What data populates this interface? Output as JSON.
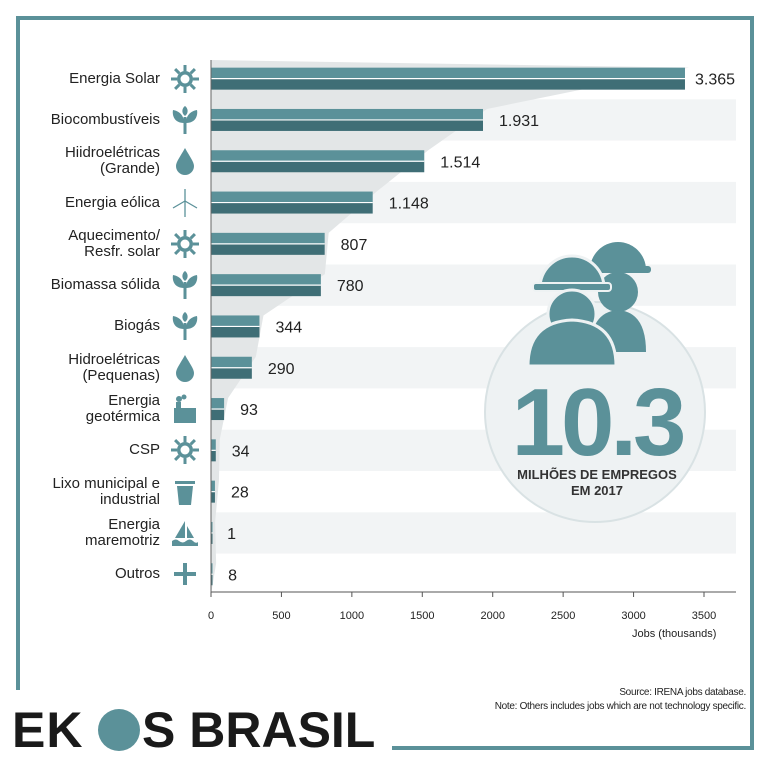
{
  "chart_data": {
    "type": "bar",
    "orientation": "horizontal",
    "categories": [
      "Energia Solar",
      "Biocombustíveis",
      "Hiidroelétricas\n(Grande)",
      "Energia eólica",
      "Aquecimento/\nResfr. solar",
      "Biomassa sólida",
      "Biogás",
      "Hidroelétricas\n(Pequenas)",
      "Energia\ngeotérmica",
      "CSP",
      "Lixo municipal e\nindustrial",
      "Energia\nmaremotriz",
      "Outros"
    ],
    "values": [
      3365,
      1931,
      1514,
      1148,
      807,
      780,
      344,
      290,
      93,
      34,
      28,
      1,
      8
    ],
    "value_labels": [
      "3.365",
      "1.931",
      "1.514",
      "1.148",
      "807",
      "780",
      "344",
      "290",
      "93",
      "34",
      "28",
      "1",
      "8"
    ],
    "icons": [
      "sun-icon",
      "plant-icon",
      "water-drop-icon",
      "wind-turbine-icon",
      "sun-icon",
      "plant-icon",
      "plant-icon",
      "water-drop-icon",
      "geothermal-icon",
      "sun-icon",
      "trash-bin-icon",
      "wave-boat-icon",
      "plus-icon"
    ],
    "xticks": [
      0,
      500,
      1000,
      1500,
      2000,
      2500,
      3000,
      3500
    ],
    "xlim": [
      0,
      3750
    ],
    "xlabel": "Jobs (thousands)",
    "grid": false,
    "bar_color": "#5b9199",
    "bar_color_dark": "#3f6e76"
  },
  "highlight": {
    "number": "10.3",
    "caption_line1": "MILHÕES DE EMPREGOS",
    "caption_line2": "EM 2017",
    "icon": "workers-hardhat-icon"
  },
  "footer": {
    "source_line1": "Source: IRENA jobs database.",
    "source_line2": "Note: Others includes jobs which are not technology specific."
  },
  "logo": {
    "part1": "EK",
    "part2": "S BRASIL",
    "accent_color": "#5b9199"
  },
  "frame_color": "#5b9199"
}
